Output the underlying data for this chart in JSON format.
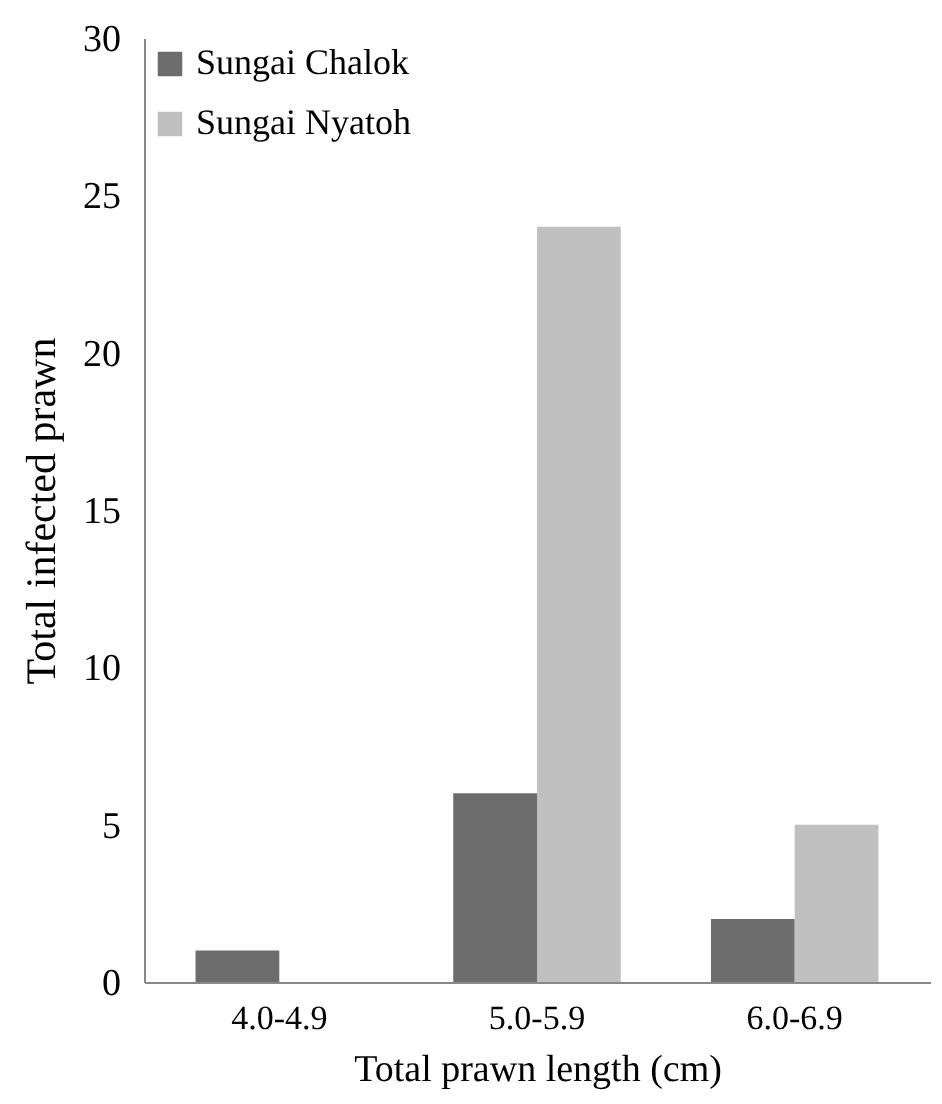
{
  "chart_data": {
    "type": "bar",
    "xlabel": "Total prawn length (cm)",
    "ylabel": "Total infected prawn",
    "categories": [
      "4.0-4.9",
      "5.0-5.9",
      "6.0-6.9"
    ],
    "series": [
      {
        "name": "Sungai Chalok",
        "color": "#6d6d6d",
        "values": [
          1,
          6,
          2
        ]
      },
      {
        "name": "Sungai Nyatoh",
        "color": "#c0c0c0",
        "values": [
          0,
          24,
          5
        ]
      }
    ],
    "ylim": [
      0,
      30
    ],
    "yticks": [
      0,
      5,
      10,
      15,
      20,
      25,
      30
    ],
    "grid": false,
    "legend": "top left"
  }
}
